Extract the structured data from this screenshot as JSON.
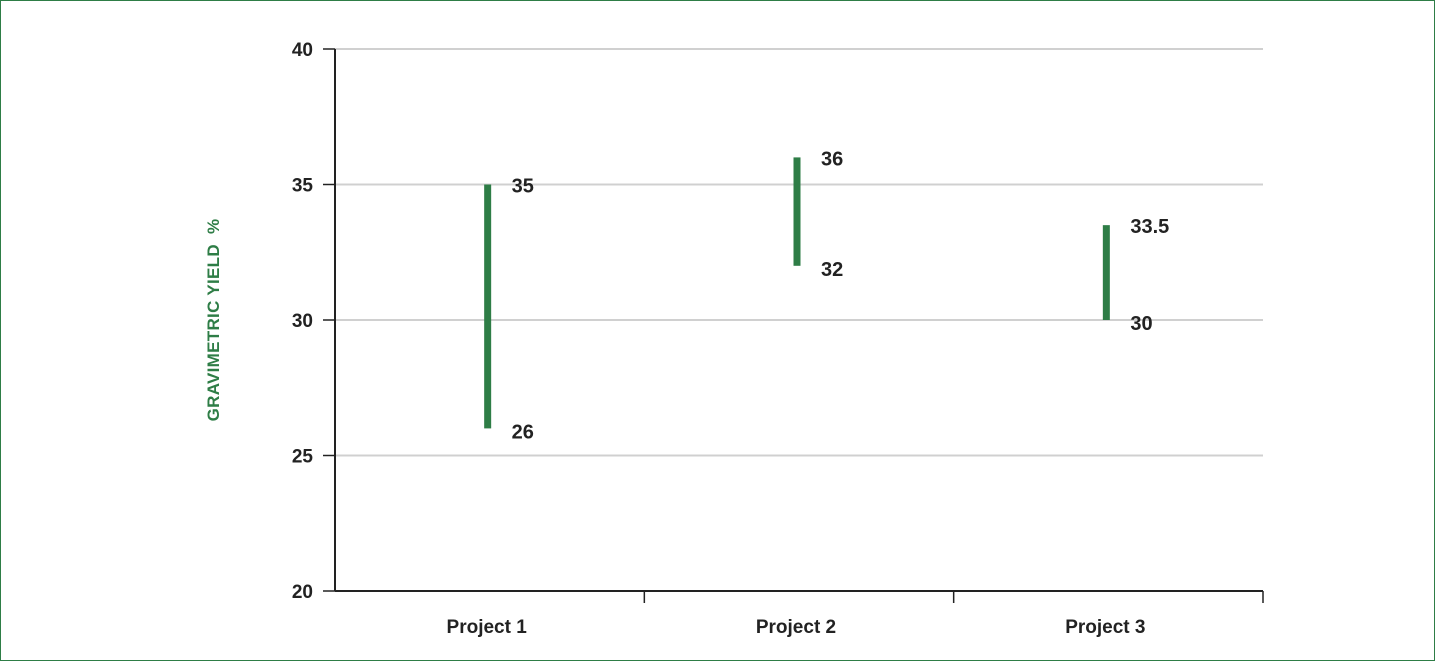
{
  "colors": {
    "accent": "#2e7d46",
    "range_bar": "#2e7d46",
    "grid": "#d0d0d0",
    "axis": "#222222",
    "text": "#222222",
    "border": "#2e7d46"
  },
  "chart_data": {
    "type": "bar",
    "subtype": "floating-range",
    "title": "",
    "xlabel": "",
    "ylabel": "GRAVIMETRIC YIELD  %",
    "categories": [
      "Project 1",
      "Project 2",
      "Project 3"
    ],
    "ranges": [
      {
        "category": "Project 1",
        "low": 26,
        "high": 35,
        "low_label": "26",
        "high_label": "35"
      },
      {
        "category": "Project 2",
        "low": 32,
        "high": 36,
        "low_label": "32",
        "high_label": "36"
      },
      {
        "category": "Project 3",
        "low": 30,
        "high": 33.5,
        "low_label": "30",
        "high_label": "33.5"
      }
    ],
    "ylim": [
      20,
      40
    ],
    "yticks": [
      20,
      25,
      30,
      35,
      40
    ],
    "ytick_labels": [
      "20",
      "25",
      "30",
      "35",
      "40"
    ],
    "grid": true,
    "legend": "none"
  }
}
